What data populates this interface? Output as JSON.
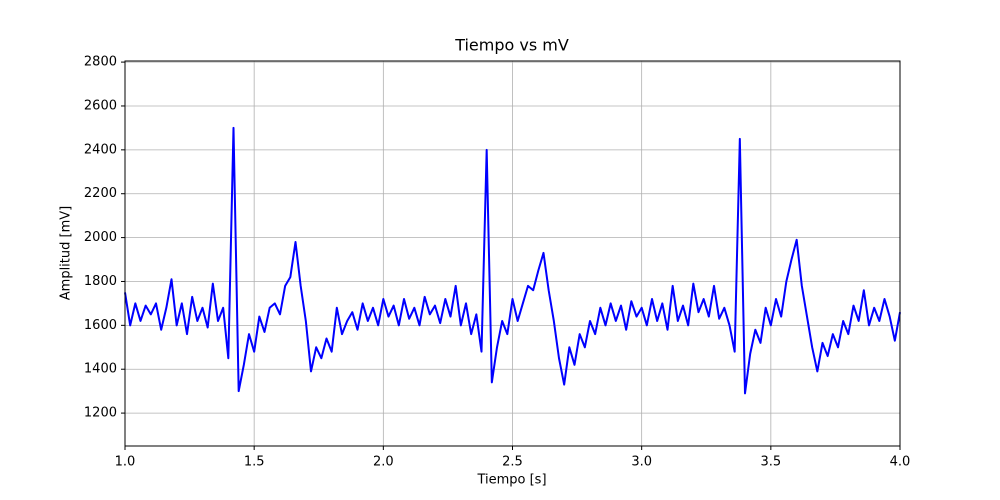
{
  "chart_data": {
    "type": "line",
    "title": "Tiempo vs mV",
    "x_label": "Tiempo [s]",
    "y_label": "Amplitud [mV]",
    "color": "#0000ff",
    "grid": true,
    "xlim": [
      1,
      4
    ],
    "ylim": [
      1050,
      2805
    ],
    "xticks": [
      {
        "value": 1,
        "label": "1.0"
      },
      {
        "value": 1.5,
        "label": "1.5"
      },
      {
        "value": 2,
        "label": "2.0"
      },
      {
        "value": 2.5,
        "label": "2.5"
      },
      {
        "value": 3,
        "label": "3.0"
      },
      {
        "value": 3.5,
        "label": "3.5"
      },
      {
        "value": 4,
        "label": "4.0"
      }
    ],
    "yticks": [
      1200,
      1400,
      1600,
      1800,
      2000,
      2200,
      2400,
      2600,
      2800
    ],
    "x": [
      1.0,
      1.02,
      1.04,
      1.06,
      1.08,
      1.1,
      1.12,
      1.14,
      1.16,
      1.18,
      1.2,
      1.22,
      1.24,
      1.26,
      1.28,
      1.3,
      1.32,
      1.34,
      1.36,
      1.38,
      1.4,
      1.42,
      1.44,
      1.46,
      1.48,
      1.5,
      1.52,
      1.54,
      1.56,
      1.58,
      1.6,
      1.62,
      1.64,
      1.66,
      1.68,
      1.7,
      1.72,
      1.74,
      1.76,
      1.78,
      1.8,
      1.82,
      1.84,
      1.86,
      1.88,
      1.9,
      1.92,
      1.94,
      1.96,
      1.98,
      2.0,
      2.02,
      2.04,
      2.06,
      2.08,
      2.1,
      2.12,
      2.14,
      2.16,
      2.18,
      2.2,
      2.22,
      2.24,
      2.26,
      2.28,
      2.3,
      2.32,
      2.34,
      2.36,
      2.38,
      2.4,
      2.42,
      2.44,
      2.46,
      2.48,
      2.5,
      2.52,
      2.54,
      2.56,
      2.58,
      2.6,
      2.62,
      2.64,
      2.66,
      2.68,
      2.7,
      2.72,
      2.74,
      2.76,
      2.78,
      2.8,
      2.82,
      2.84,
      2.86,
      2.88,
      2.9,
      2.92,
      2.94,
      2.96,
      2.98,
      3.0,
      3.02,
      3.04,
      3.06,
      3.08,
      3.1,
      3.12,
      3.14,
      3.16,
      3.18,
      3.2,
      3.22,
      3.24,
      3.26,
      3.28,
      3.3,
      3.32,
      3.34,
      3.36,
      3.38,
      3.4,
      3.42,
      3.44,
      3.46,
      3.48,
      3.5,
      3.52,
      3.54,
      3.56,
      3.58,
      3.6,
      3.62,
      3.64,
      3.66,
      3.68,
      3.7,
      3.72,
      3.74,
      3.76,
      3.78,
      3.8,
      3.82,
      3.84,
      3.86,
      3.88,
      3.9,
      3.92,
      3.94,
      3.96,
      3.98,
      4.0
    ],
    "values": [
      1750,
      1600,
      1700,
      1620,
      1690,
      1650,
      1700,
      1580,
      1680,
      1810,
      1600,
      1700,
      1560,
      1730,
      1620,
      1680,
      1590,
      1790,
      1620,
      1680,
      1450,
      2500,
      1300,
      1420,
      1560,
      1480,
      1640,
      1570,
      1680,
      1700,
      1650,
      1780,
      1820,
      1980,
      1780,
      1620,
      1390,
      1500,
      1450,
      1540,
      1480,
      1680,
      1560,
      1620,
      1660,
      1580,
      1700,
      1620,
      1680,
      1600,
      1720,
      1640,
      1690,
      1600,
      1720,
      1630,
      1680,
      1600,
      1730,
      1650,
      1690,
      1610,
      1720,
      1640,
      1780,
      1600,
      1700,
      1560,
      1650,
      1480,
      2400,
      1340,
      1500,
      1620,
      1560,
      1720,
      1620,
      1700,
      1780,
      1760,
      1850,
      1930,
      1760,
      1620,
      1450,
      1330,
      1500,
      1420,
      1560,
      1500,
      1620,
      1560,
      1680,
      1600,
      1700,
      1620,
      1690,
      1580,
      1710,
      1640,
      1680,
      1600,
      1720,
      1620,
      1700,
      1580,
      1780,
      1620,
      1690,
      1600,
      1790,
      1660,
      1720,
      1640,
      1780,
      1630,
      1680,
      1600,
      1480,
      2450,
      1290,
      1470,
      1580,
      1520,
      1680,
      1600,
      1720,
      1640,
      1800,
      1900,
      1990,
      1780,
      1640,
      1500,
      1390,
      1520,
      1460,
      1560,
      1500,
      1620,
      1560,
      1690,
      1620,
      1760,
      1600,
      1680,
      1620,
      1720,
      1640,
      1530,
      1660
    ]
  }
}
